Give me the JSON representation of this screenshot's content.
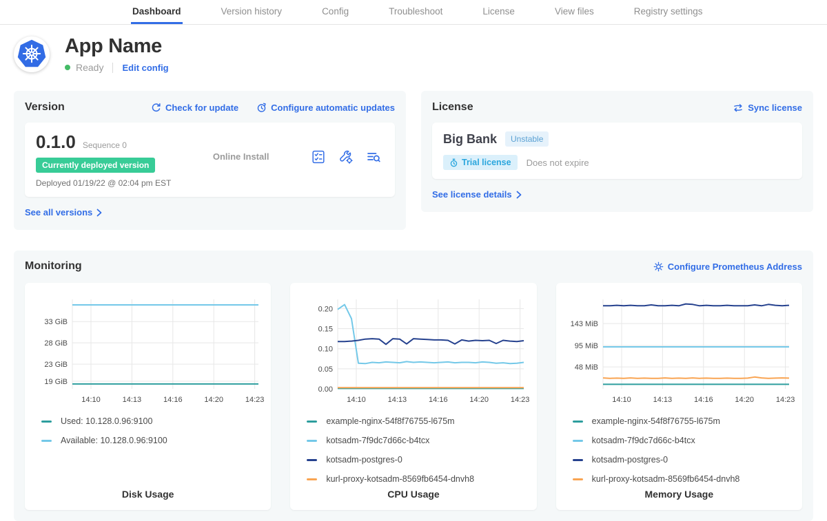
{
  "nav": {
    "tabs": [
      {
        "label": "Dashboard",
        "active": true
      },
      {
        "label": "Version history"
      },
      {
        "label": "Config"
      },
      {
        "label": "Troubleshoot"
      },
      {
        "label": "License"
      },
      {
        "label": "View files"
      },
      {
        "label": "Registry settings"
      }
    ]
  },
  "header": {
    "app_name": "App Name",
    "status": "Ready",
    "edit_config_label": "Edit config"
  },
  "version": {
    "title": "Version",
    "check_for_update_label": "Check for update",
    "configure_updates_label": "Configure automatic updates",
    "version_number": "0.1.0",
    "sequence_label": "Sequence 0",
    "deployed_badge": "Currently deployed version",
    "deployed_text": "Deployed 01/19/22 @ 02:04 pm EST",
    "install_type": "Online Install",
    "see_all_label": "See all versions"
  },
  "license": {
    "title": "License",
    "sync_label": "Sync license",
    "customer_name": "Big Bank",
    "channel_badge": "Unstable",
    "type_badge": "Trial license",
    "expiration_text": "Does not expire",
    "see_details_label": "See license details"
  },
  "monitoring": {
    "title": "Monitoring",
    "configure_prometheus_label": "Configure Prometheus Address"
  },
  "colors": {
    "accent_blue": "#326de6",
    "ready_green": "#44bb66",
    "deployed_badge_green": "#38cc97",
    "series_teal": "#2d9e9e",
    "series_light_blue": "#73c8e8",
    "series_navy": "#25418e",
    "series_orange": "#f9a452"
  },
  "chart_data": [
    {
      "type": "line",
      "title": "Disk Usage",
      "x_ticks": [
        "14:10",
        "14:13",
        "14:16",
        "14:20",
        "14:23"
      ],
      "y_ticks": [
        {
          "v": 33,
          "label": "33 GiB"
        },
        {
          "v": 28,
          "label": "28 GiB"
        },
        {
          "v": 23,
          "label": "23 GiB"
        },
        {
          "v": 19,
          "label": "19 GiB"
        }
      ],
      "ylim": [
        17.2,
        38.2
      ],
      "grid": true,
      "legend_position": "bottom-left",
      "series": [
        {
          "name": "Used: 10.128.0.96:9100",
          "color": "#2d9e9e",
          "points": [
            18.35,
            18.35,
            18.35,
            18.35
          ]
        },
        {
          "name": "Available: 10.128.0.96:9100",
          "color": "#73c8e8",
          "points": [
            36.9,
            36.9,
            36.9,
            36.9
          ]
        }
      ]
    },
    {
      "type": "line",
      "title": "CPU Usage",
      "x_ticks": [
        "14:10",
        "14:13",
        "14:16",
        "14:20",
        "14:23"
      ],
      "y_ticks": [
        {
          "v": 0.2,
          "label": "0.20"
        },
        {
          "v": 0.15,
          "label": "0.15"
        },
        {
          "v": 0.1,
          "label": "0.10"
        },
        {
          "v": 0.05,
          "label": "0.05"
        },
        {
          "v": 0.0,
          "label": "0.00"
        }
      ],
      "ylim": [
        0,
        0.223
      ],
      "grid": true,
      "legend_position": "bottom-left",
      "series": [
        {
          "name": "example-nginx-54f8f76755-l675m",
          "color": "#2d9e9e",
          "points": [
            0.001,
            0.001,
            0.001,
            0.001
          ]
        },
        {
          "name": "kotsadm-7f9dc7d66c-b4tcx",
          "color": "#73c8e8",
          "points": [
            0.198,
            0.21,
            0.175,
            0.064,
            0.063,
            0.066,
            0.065,
            0.067,
            0.066,
            0.065,
            0.068,
            0.066,
            0.067,
            0.066,
            0.065,
            0.066,
            0.067,
            0.065,
            0.066,
            0.066,
            0.065,
            0.067,
            0.066,
            0.064,
            0.065,
            0.063,
            0.064,
            0.066
          ]
        },
        {
          "name": "kotsadm-postgres-0",
          "color": "#25418e",
          "points": [
            0.118,
            0.118,
            0.119,
            0.121,
            0.124,
            0.125,
            0.124,
            0.111,
            0.125,
            0.124,
            0.112,
            0.125,
            0.124,
            0.123,
            0.122,
            0.122,
            0.121,
            0.112,
            0.122,
            0.119,
            0.121,
            0.12,
            0.121,
            0.113,
            0.121,
            0.119,
            0.118,
            0.12
          ]
        },
        {
          "name": "kurl-proxy-kotsadm-8569fb6454-dnvh8",
          "color": "#f9a452",
          "points": [
            0.003,
            0.003,
            0.003,
            0.003
          ]
        }
      ]
    },
    {
      "type": "line",
      "title": "Memory Usage",
      "x_ticks": [
        "14:10",
        "14:13",
        "14:16",
        "14:20",
        "14:23"
      ],
      "y_ticks": [
        {
          "v": 143,
          "label": "143 MiB"
        },
        {
          "v": 95,
          "label": "95 MiB"
        },
        {
          "v": 48,
          "label": "48 MiB"
        }
      ],
      "ylim": [
        0,
        196
      ],
      "grid": true,
      "legend_position": "bottom-left",
      "series": [
        {
          "name": "example-nginx-54f8f76755-l675m",
          "color": "#2d9e9e",
          "points": [
            10,
            10,
            10,
            10
          ]
        },
        {
          "name": "kotsadm-7f9dc7d66c-b4tcx",
          "color": "#73c8e8",
          "points": [
            92,
            92,
            92,
            92
          ]
        },
        {
          "name": "kotsadm-postgres-0",
          "color": "#25418e",
          "points": [
            182,
            182,
            183,
            182,
            183,
            182,
            182,
            184,
            182,
            182,
            183,
            182,
            186,
            185,
            182,
            183,
            182,
            182,
            183,
            182,
            182,
            182,
            184,
            182,
            185,
            183,
            182,
            183
          ]
        },
        {
          "name": "kurl-proxy-kotsadm-8569fb6454-dnvh8",
          "color": "#f9a452",
          "points": [
            24,
            23,
            23.5,
            23,
            24,
            23,
            23.5,
            23,
            23,
            24,
            23,
            23.5,
            23,
            24,
            23,
            23.5,
            23,
            23,
            23.5,
            23,
            23,
            23.5,
            26,
            24,
            23,
            23.5,
            24,
            23.5
          ]
        }
      ]
    }
  ]
}
